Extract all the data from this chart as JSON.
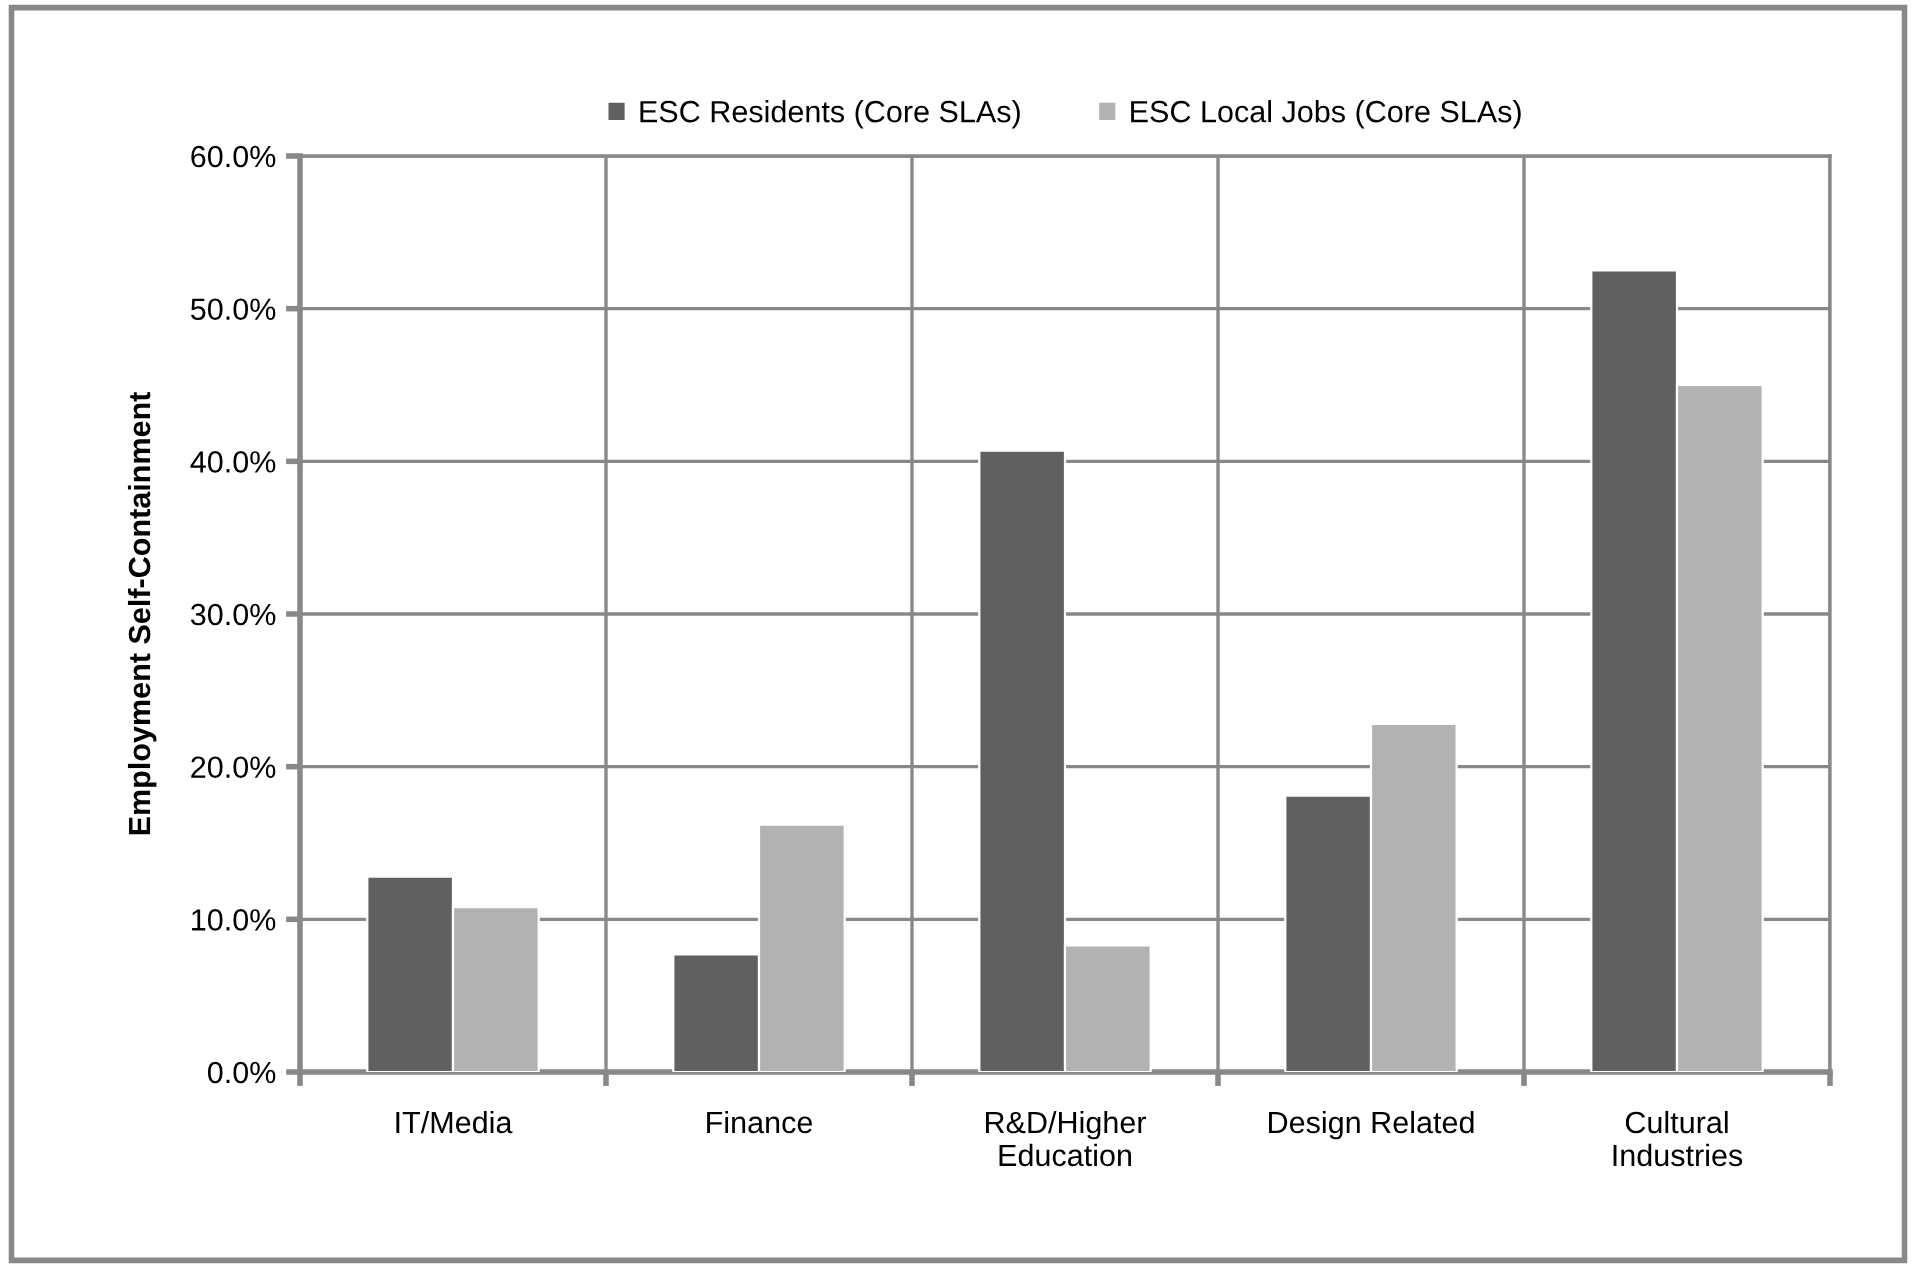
{
  "chart_data": {
    "type": "bar",
    "ylabel": "Employment Self-Containment",
    "categories": [
      "IT/Media",
      "Finance",
      "R&D/Higher\nEducation",
      "Design Related",
      "Cultural\nIndustries"
    ],
    "series": [
      {
        "name": "ESC Residents (Core SLAs)",
        "color": "#606060",
        "values": [
          12.8,
          7.7,
          40.7,
          18.1,
          52.5
        ]
      },
      {
        "name": "ESC Local Jobs (Core SLAs)",
        "color": "#b2b2b2",
        "values": [
          10.8,
          16.2,
          8.3,
          22.8,
          45.0
        ]
      }
    ],
    "ylim": [
      0,
      60
    ],
    "yticks": [
      {
        "value": 0,
        "label": "0.0%"
      },
      {
        "value": 10,
        "label": "10.0%"
      },
      {
        "value": 20,
        "label": "20.0%"
      },
      {
        "value": 30,
        "label": "30.0%"
      },
      {
        "value": 40,
        "label": "40.0%"
      },
      {
        "value": 50,
        "label": "50.0%"
      },
      {
        "value": 60,
        "label": "60.0%"
      }
    ],
    "grid": true,
    "legend": "top"
  }
}
